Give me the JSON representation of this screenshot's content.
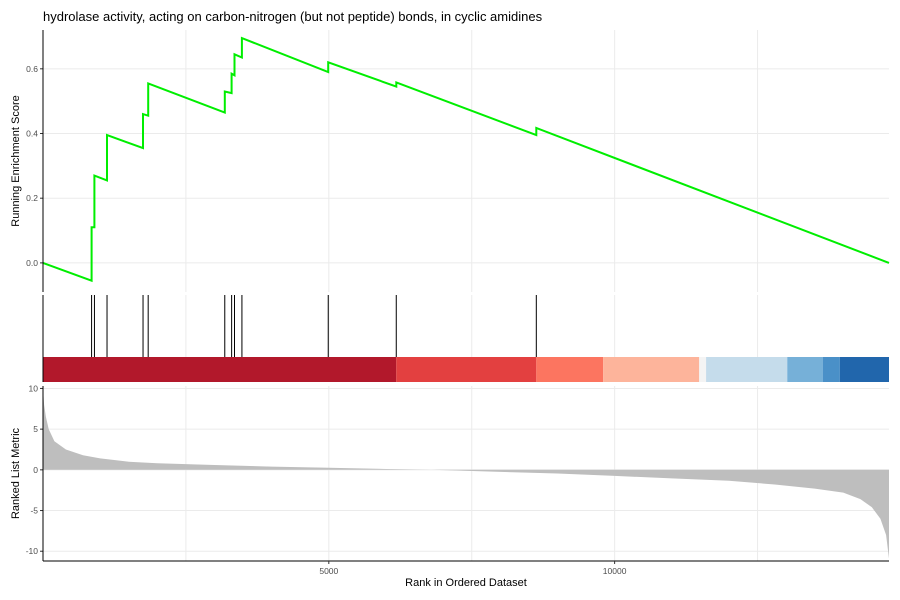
{
  "chart_data": {
    "type": "line",
    "title": "hydrolase activity, acting on carbon-nitrogen (but not peptide) bonds, in cyclic amidines",
    "xlabel": "Rank in Ordered Dataset",
    "xlim": [
      0,
      14800
    ],
    "x_ticks": [
      5000,
      10000
    ],
    "x_tick_labels": [
      "5000",
      "10000"
    ],
    "grid": true,
    "panels": [
      {
        "name": "running-score",
        "ylabel": "Running Enrichment Score",
        "ylim": [
          -0.09,
          0.72
        ],
        "y_ticks": [
          0.0,
          0.2,
          0.4,
          0.6
        ],
        "y_tick_labels": [
          "0.0",
          "0.2",
          "0.4",
          "0.6"
        ],
        "color": "#00ee00",
        "series": [
          {
            "x": [
              0,
              850,
              850,
              880,
              880,
              900,
              900,
              1120,
              1120,
              1750,
              1750,
              1840,
              1840,
              3180,
              3180,
              3300,
              3300,
              3350,
              3350,
              3480,
              3480,
              4990,
              4990,
              6180,
              6180,
              8630,
              8630,
              14800
            ],
            "y": [
              0.0,
              -0.055,
              0.11,
              0.11,
              0.11,
              0.11,
              0.27,
              0.255,
              0.395,
              0.355,
              0.46,
              0.455,
              0.555,
              0.465,
              0.53,
              0.525,
              0.585,
              0.58,
              0.645,
              0.635,
              0.695,
              0.59,
              0.62,
              0.545,
              0.558,
              0.395,
              0.417,
              0.0
            ]
          }
        ]
      },
      {
        "name": "gene-hits",
        "hits": [
          850,
          900,
          1120,
          1750,
          1840,
          3180,
          3300,
          3350,
          3480,
          4990,
          6180,
          8630
        ]
      },
      {
        "name": "rank-color-band",
        "segments": [
          {
            "start": 0,
            "end": 6180,
            "color": "#b2182b"
          },
          {
            "start": 6180,
            "end": 8630,
            "color": "#e34040"
          },
          {
            "start": 8630,
            "end": 9800,
            "color": "#fc7560"
          },
          {
            "start": 9800,
            "end": 11480,
            "color": "#fdb49b"
          },
          {
            "start": 11480,
            "end": 11600,
            "color": "#f4f4f4"
          },
          {
            "start": 11600,
            "end": 13020,
            "color": "#c5dceb"
          },
          {
            "start": 13020,
            "end": 13640,
            "color": "#76b0d8"
          },
          {
            "start": 13640,
            "end": 13940,
            "color": "#4a90c8"
          },
          {
            "start": 13940,
            "end": 14800,
            "color": "#2166ac"
          }
        ]
      },
      {
        "name": "ranked-list",
        "ylabel": "Ranked List Metric",
        "ylim": [
          -11.2,
          10.3
        ],
        "y_ticks": [
          10,
          5,
          0,
          -5,
          -10
        ],
        "y_tick_labels": [
          "10",
          "5",
          "0",
          "-5",
          "-10"
        ],
        "fill_color": "#bebebe",
        "series": [
          {
            "x": [
              0,
              20,
              50,
              100,
              200,
              400,
              700,
              1000,
              1500,
              2000,
              3000,
              4000,
              5000,
              6000,
              6800,
              8000,
              9000,
              10000,
              11000,
              12000,
              12800,
              13500,
              14000,
              14300,
              14500,
              14650,
              14750,
              14800
            ],
            "y": [
              10.0,
              8.0,
              6.5,
              5.0,
              3.5,
              2.5,
              1.8,
              1.4,
              1.0,
              0.8,
              0.6,
              0.4,
              0.25,
              0.1,
              0.0,
              -0.25,
              -0.45,
              -0.75,
              -1.05,
              -1.35,
              -1.8,
              -2.3,
              -2.8,
              -3.6,
              -4.6,
              -6.0,
              -8.0,
              -10.9
            ]
          }
        ]
      }
    ]
  }
}
